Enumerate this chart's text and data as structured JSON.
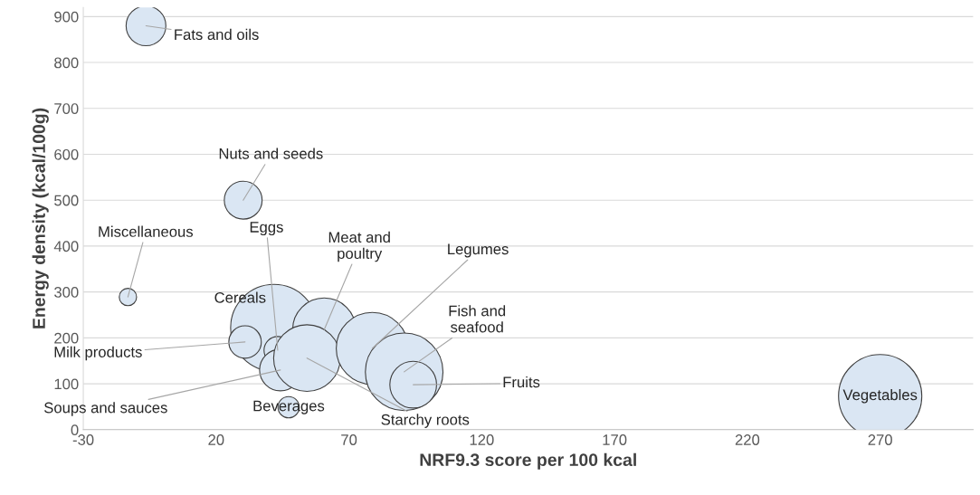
{
  "chart_data": {
    "type": "bubble",
    "xlabel": "NRF9.3 score per 100 kcal",
    "ylabel": "Energy density (kcal/100g)",
    "x": [
      -6.4,
      30.2,
      -13.2,
      41.8,
      30.9,
      43.2,
      44.2,
      47.3,
      60.7,
      54.2,
      78.8,
      90.8,
      94.2,
      270
    ],
    "values": [
      880,
      500,
      289,
      222,
      191,
      173,
      130,
      49,
      218,
      156,
      177,
      126,
      98,
      73
    ],
    "sizes": [
      0.21,
      0.19,
      0.04,
      1,
      0.14,
      0.1,
      0.23,
      0.06,
      0.53,
      0.59,
      0.69,
      0.8,
      0.29,
      0.92
    ],
    "color": "#dae6f3",
    "annotations": [
      {
        "text": "Fats and oils",
        "x": -6.4,
        "y": 880
      },
      {
        "text": "Nuts and seeds",
        "x": 30.2,
        "y": 500
      },
      {
        "text": "Miscellaneous",
        "x": -13.2,
        "y": 289
      },
      {
        "text": "Cereals",
        "x": 41.8,
        "y": 222
      },
      {
        "text": "Milk products",
        "x": 30.9,
        "y": 191
      },
      {
        "text": "Eggs",
        "x": 43.2,
        "y": 173
      },
      {
        "text": "Soups and sauces",
        "x": 44.2,
        "y": 130
      },
      {
        "text": "Beverages",
        "x": 47.3,
        "y": 49
      },
      {
        "text": "Meat and\npoultry",
        "x": 60.7,
        "y": 218
      },
      {
        "text": "Starchy roots",
        "x": 54.2,
        "y": 156
      },
      {
        "text": "Legumes",
        "x": 78.8,
        "y": 177
      },
      {
        "text": "Fish and\nseafood",
        "x": 90.8,
        "y": 126
      },
      {
        "text": "Fruits",
        "x": 94.2,
        "y": 98
      },
      {
        "text": "Vegetables",
        "x": 270,
        "y": 73
      }
    ],
    "xlim": [
      -30,
      305
    ],
    "xticks": [
      -30,
      20,
      70,
      120,
      170,
      220,
      270
    ],
    "ylim": [
      0,
      920
    ],
    "yticks": [
      0,
      100,
      200,
      300,
      400,
      500,
      600,
      700,
      800,
      900
    ],
    "grid": "y"
  }
}
